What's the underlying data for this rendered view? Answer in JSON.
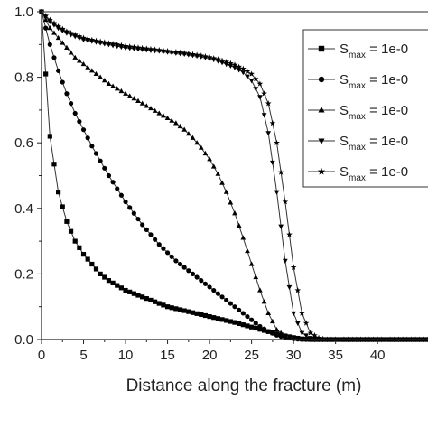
{
  "chart_data": {
    "type": "line",
    "title": "",
    "xlabel": "Distance along the fracture (m)",
    "ylabel": "",
    "xlim": [
      0,
      46
    ],
    "ylim": [
      0,
      1.0
    ],
    "x_ticks": [
      "0",
      "5",
      "10",
      "15",
      "20",
      "25",
      "30",
      "35",
      "40"
    ],
    "y_ticks": [
      "0.0",
      "0.2",
      "0.4",
      "0.6",
      "0.8",
      "1.0"
    ],
    "grid": false,
    "legend_position": "top-right",
    "legend_text": "S_max = 1e-0",
    "x": [
      0,
      1,
      2,
      3,
      4,
      5,
      6,
      7,
      8,
      9,
      10,
      11,
      12,
      13,
      14,
      15,
      16,
      17,
      18,
      19,
      20,
      21,
      22,
      23,
      24,
      25,
      26,
      27,
      28,
      29,
      30,
      31,
      32,
      33,
      34,
      35,
      36,
      37,
      38,
      39,
      40,
      41,
      42,
      43,
      44,
      45,
      46
    ],
    "series": [
      {
        "marker": "square",
        "values": [
          1.0,
          0.62,
          0.45,
          0.36,
          0.3,
          0.26,
          0.23,
          0.2,
          0.18,
          0.165,
          0.15,
          0.14,
          0.13,
          0.12,
          0.11,
          0.1,
          0.094,
          0.088,
          0.082,
          0.076,
          0.07,
          0.064,
          0.058,
          0.052,
          0.045,
          0.038,
          0.031,
          0.024,
          0.017,
          0.011,
          0.006,
          0.002,
          0.0,
          0.0,
          0.0,
          0.0,
          0.0,
          0.0,
          0.0,
          0.0,
          0.0,
          0.0,
          0.0,
          0.0,
          0.0,
          0.0,
          0.0
        ]
      },
      {
        "marker": "circle",
        "values": [
          1.0,
          0.9,
          0.82,
          0.75,
          0.69,
          0.64,
          0.59,
          0.545,
          0.5,
          0.46,
          0.42,
          0.385,
          0.35,
          0.32,
          0.29,
          0.265,
          0.24,
          0.22,
          0.2,
          0.18,
          0.16,
          0.14,
          0.12,
          0.1,
          0.08,
          0.06,
          0.04,
          0.025,
          0.013,
          0.006,
          0.002,
          0.0,
          0.0,
          0.0,
          0.0,
          0.0,
          0.0,
          0.0,
          0.0,
          0.0,
          0.0,
          0.0,
          0.0,
          0.0,
          0.0,
          0.0,
          0.0
        ]
      },
      {
        "marker": "triangle-up",
        "values": [
          1.0,
          0.95,
          0.92,
          0.89,
          0.86,
          0.84,
          0.82,
          0.8,
          0.78,
          0.765,
          0.75,
          0.735,
          0.72,
          0.705,
          0.69,
          0.675,
          0.66,
          0.64,
          0.615,
          0.585,
          0.55,
          0.505,
          0.45,
          0.385,
          0.31,
          0.23,
          0.15,
          0.08,
          0.03,
          0.01,
          0.003,
          0.0,
          0.0,
          0.0,
          0.0,
          0.0,
          0.0,
          0.0,
          0.0,
          0.0,
          0.0,
          0.0,
          0.0,
          0.0,
          0.0,
          0.0,
          0.0
        ]
      },
      {
        "marker": "triangle-down",
        "values": [
          1.0,
          0.97,
          0.95,
          0.935,
          0.925,
          0.915,
          0.91,
          0.905,
          0.9,
          0.895,
          0.89,
          0.888,
          0.885,
          0.882,
          0.88,
          0.877,
          0.874,
          0.871,
          0.867,
          0.863,
          0.858,
          0.85,
          0.84,
          0.83,
          0.815,
          0.79,
          0.74,
          0.63,
          0.45,
          0.24,
          0.08,
          0.02,
          0.005,
          0.0,
          0.0,
          0.0,
          0.0,
          0.0,
          0.0,
          0.0,
          0.0,
          0.0,
          0.0,
          0.0,
          0.0,
          0.0,
          0.0
        ]
      },
      {
        "marker": "star",
        "values": [
          1.0,
          0.975,
          0.955,
          0.94,
          0.93,
          0.92,
          0.914,
          0.909,
          0.904,
          0.9,
          0.895,
          0.892,
          0.889,
          0.886,
          0.883,
          0.88,
          0.877,
          0.874,
          0.87,
          0.866,
          0.861,
          0.855,
          0.847,
          0.838,
          0.826,
          0.81,
          0.78,
          0.72,
          0.6,
          0.42,
          0.22,
          0.08,
          0.02,
          0.005,
          0.0,
          0.0,
          0.0,
          0.0,
          0.0,
          0.0,
          0.0,
          0.0,
          0.0,
          0.0,
          0.0,
          0.0,
          0.0
        ]
      }
    ]
  }
}
